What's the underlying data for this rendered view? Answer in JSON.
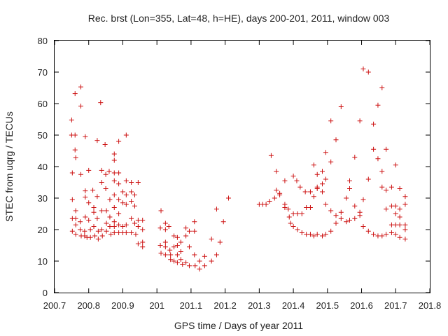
{
  "chart_data": {
    "type": "scatter",
    "title": "Rec. brst (Lon=355, Lat=48, h=HE), days 200-201, 2011, window 003",
    "xlabel": "GPS time / Days of year 2011",
    "ylabel": "STEC from uqrg / TECUs",
    "xlim": [
      200.7,
      201.8
    ],
    "ylim": [
      0,
      80
    ],
    "xticks": [
      "200.7",
      "200.8",
      "200.9",
      "201",
      "201.1",
      "201.2",
      "201.3",
      "201.4",
      "201.5",
      "201.6",
      "201.7",
      "201.8"
    ],
    "yticks": [
      "0",
      "10",
      "20",
      "30",
      "40",
      "50",
      "60",
      "70",
      "80"
    ],
    "grid": false,
    "marker": "plus",
    "color": "#cc1111",
    "points": [
      [
        200.75,
        54.8
      ],
      [
        200.75,
        50.0
      ],
      [
        200.752,
        38.0
      ],
      [
        200.752,
        29.5
      ],
      [
        200.752,
        23.5
      ],
      [
        200.752,
        19.5
      ],
      [
        200.76,
        63.2
      ],
      [
        200.76,
        50.0
      ],
      [
        200.76,
        45.3
      ],
      [
        200.762,
        42.8
      ],
      [
        200.762,
        26.0
      ],
      [
        200.762,
        23.5
      ],
      [
        200.762,
        21.5
      ],
      [
        200.762,
        18.5
      ],
      [
        200.777,
        65.3
      ],
      [
        200.777,
        59.2
      ],
      [
        200.777,
        37.5
      ],
      [
        200.775,
        22.5
      ],
      [
        200.775,
        20.0
      ],
      [
        200.778,
        18.0
      ],
      [
        200.79,
        49.5
      ],
      [
        200.79,
        32.3
      ],
      [
        200.79,
        30.3
      ],
      [
        200.79,
        24.0
      ],
      [
        200.788,
        19.5
      ],
      [
        200.788,
        18.0
      ],
      [
        200.795,
        17.5
      ],
      [
        200.8,
        38.8
      ],
      [
        200.8,
        28.5
      ],
      [
        200.8,
        23.0
      ],
      [
        200.805,
        20.0
      ],
      [
        200.805,
        17.5
      ],
      [
        200.812,
        32.5
      ],
      [
        200.815,
        27.0
      ],
      [
        200.815,
        25.5
      ],
      [
        200.815,
        21.0
      ],
      [
        200.818,
        18.0
      ],
      [
        200.825,
        48.3
      ],
      [
        200.825,
        30.5
      ],
      [
        200.825,
        23.5
      ],
      [
        200.828,
        19.5
      ],
      [
        200.828,
        17.0
      ],
      [
        200.835,
        60.3
      ],
      [
        200.838,
        38.8
      ],
      [
        200.838,
        35.0
      ],
      [
        200.838,
        26.0
      ],
      [
        200.838,
        20.0
      ],
      [
        200.84,
        18.0
      ],
      [
        200.848,
        47.0
      ],
      [
        200.85,
        37.5
      ],
      [
        200.85,
        33.0
      ],
      [
        200.852,
        26.0
      ],
      [
        200.852,
        22.0
      ],
      [
        200.852,
        19.5
      ],
      [
        200.86,
        38.5
      ],
      [
        200.862,
        29.5
      ],
      [
        200.862,
        24.0
      ],
      [
        200.862,
        21.0
      ],
      [
        200.865,
        18.5
      ],
      [
        200.875,
        44.0
      ],
      [
        200.875,
        42.0
      ],
      [
        200.875,
        38.0
      ],
      [
        200.875,
        35.5
      ],
      [
        200.875,
        31.0
      ],
      [
        200.875,
        27.0
      ],
      [
        200.875,
        22.5
      ],
      [
        200.875,
        21.0
      ],
      [
        200.875,
        19.0
      ],
      [
        200.888,
        48.0
      ],
      [
        200.888,
        38.0
      ],
      [
        200.888,
        34.5
      ],
      [
        200.888,
        29.5
      ],
      [
        200.888,
        25.0
      ],
      [
        200.888,
        21.5
      ],
      [
        200.888,
        19.0
      ],
      [
        200.9,
        32.0
      ],
      [
        200.9,
        28.5
      ],
      [
        200.9,
        21.0
      ],
      [
        200.9,
        19.0
      ],
      [
        200.91,
        50.0
      ],
      [
        200.91,
        35.5
      ],
      [
        200.91,
        31.0
      ],
      [
        200.91,
        28.0
      ],
      [
        200.91,
        21.5
      ],
      [
        200.91,
        19.0
      ],
      [
        200.925,
        35.0
      ],
      [
        200.925,
        32.0
      ],
      [
        200.925,
        29.0
      ],
      [
        200.925,
        23.5
      ],
      [
        200.925,
        19.0
      ],
      [
        200.935,
        31.0
      ],
      [
        200.935,
        27.5
      ],
      [
        200.935,
        22.0
      ],
      [
        200.938,
        18.5
      ],
      [
        200.945,
        35.0
      ],
      [
        200.945,
        23.0
      ],
      [
        200.945,
        21.0
      ],
      [
        200.945,
        15.5
      ],
      [
        200.958,
        23.0
      ],
      [
        200.958,
        20.0
      ],
      [
        200.958,
        16.0
      ],
      [
        200.958,
        14.5
      ],
      [
        201.012,
        26.0
      ],
      [
        201.01,
        20.5
      ],
      [
        201.01,
        15.0
      ],
      [
        201.012,
        12.5
      ],
      [
        201.025,
        22.0
      ],
      [
        201.025,
        20.0
      ],
      [
        201.025,
        16.0
      ],
      [
        201.025,
        14.5
      ],
      [
        201.025,
        12.0
      ],
      [
        201.035,
        21.0
      ],
      [
        201.038,
        13.5
      ],
      [
        201.04,
        12.0
      ],
      [
        201.04,
        10.5
      ],
      [
        201.05,
        18.0
      ],
      [
        201.05,
        14.5
      ],
      [
        201.05,
        10.0
      ],
      [
        201.06,
        17.5
      ],
      [
        201.06,
        15.0
      ],
      [
        201.06,
        12.0
      ],
      [
        201.06,
        9.5
      ],
      [
        201.07,
        16.0
      ],
      [
        201.07,
        13.0
      ],
      [
        201.07,
        10.5
      ],
      [
        201.075,
        9.0
      ],
      [
        201.085,
        20.5
      ],
      [
        201.085,
        18.0
      ],
      [
        201.085,
        9.5
      ],
      [
        201.095,
        19.5
      ],
      [
        201.095,
        14.5
      ],
      [
        201.095,
        8.5
      ],
      [
        201.11,
        22.5
      ],
      [
        201.11,
        19.5
      ],
      [
        201.11,
        12.0
      ],
      [
        201.112,
        8.5
      ],
      [
        201.125,
        10.0
      ],
      [
        201.125,
        7.5
      ],
      [
        201.14,
        11.5
      ],
      [
        201.14,
        8.5
      ],
      [
        201.16,
        17.0
      ],
      [
        201.16,
        10.0
      ],
      [
        201.175,
        26.5
      ],
      [
        201.175,
        12.0
      ],
      [
        201.185,
        16.0
      ],
      [
        201.195,
        22.5
      ],
      [
        201.21,
        30.0
      ],
      [
        201.3,
        28.0
      ],
      [
        201.31,
        28.0
      ],
      [
        201.32,
        28.0
      ],
      [
        201.33,
        29.0
      ],
      [
        201.335,
        43.5
      ],
      [
        201.345,
        30.0
      ],
      [
        201.35,
        38.5
      ],
      [
        201.35,
        32.5
      ],
      [
        201.36,
        31.5
      ],
      [
        201.36,
        31.0
      ],
      [
        201.375,
        35.5
      ],
      [
        201.375,
        28.0
      ],
      [
        201.375,
        27.0
      ],
      [
        201.385,
        26.5
      ],
      [
        201.388,
        24.0
      ],
      [
        201.392,
        22.0
      ],
      [
        201.4,
        37.0
      ],
      [
        201.4,
        25.0
      ],
      [
        201.4,
        21.0
      ],
      [
        201.41,
        35.5
      ],
      [
        201.412,
        25.0
      ],
      [
        201.412,
        20.0
      ],
      [
        201.42,
        33.5
      ],
      [
        201.425,
        25.0
      ],
      [
        201.425,
        19.0
      ],
      [
        201.435,
        32.0
      ],
      [
        201.438,
        27.0
      ],
      [
        201.438,
        18.5
      ],
      [
        201.45,
        32.0
      ],
      [
        201.45,
        27.0
      ],
      [
        201.45,
        18.5
      ],
      [
        201.46,
        40.5
      ],
      [
        201.46,
        30.5
      ],
      [
        201.46,
        18.0
      ],
      [
        201.47,
        37.5
      ],
      [
        201.47,
        33.5
      ],
      [
        201.47,
        33.0
      ],
      [
        201.47,
        18.5
      ],
      [
        201.485,
        38.5
      ],
      [
        201.485,
        34.5
      ],
      [
        201.485,
        32.0
      ],
      [
        201.485,
        18.0
      ],
      [
        201.495,
        44.5
      ],
      [
        201.495,
        36.0
      ],
      [
        201.495,
        28.0
      ],
      [
        201.495,
        18.5
      ],
      [
        201.51,
        54.5
      ],
      [
        201.51,
        41.5
      ],
      [
        201.51,
        26.0
      ],
      [
        201.51,
        19.5
      ],
      [
        201.525,
        48.5
      ],
      [
        201.525,
        24.5
      ],
      [
        201.525,
        22.0
      ],
      [
        201.54,
        59.0
      ],
      [
        201.54,
        25.5
      ],
      [
        201.54,
        23.5
      ],
      [
        201.555,
        30.0
      ],
      [
        201.555,
        22.5
      ],
      [
        201.565,
        35.5
      ],
      [
        201.565,
        33.0
      ],
      [
        201.565,
        23.0
      ],
      [
        201.58,
        43.0
      ],
      [
        201.58,
        27.5
      ],
      [
        201.58,
        23.5
      ],
      [
        201.595,
        54.5
      ],
      [
        201.595,
        25.5
      ],
      [
        201.595,
        24.5
      ],
      [
        201.605,
        71.0
      ],
      [
        201.605,
        29.5
      ],
      [
        201.605,
        21.0
      ],
      [
        201.62,
        70.0
      ],
      [
        201.62,
        36.0
      ],
      [
        201.62,
        19.5
      ],
      [
        201.635,
        53.5
      ],
      [
        201.635,
        45.5
      ],
      [
        201.635,
        18.5
      ],
      [
        201.648,
        59.5
      ],
      [
        201.648,
        42.5
      ],
      [
        201.648,
        18.0
      ],
      [
        201.66,
        65.0
      ],
      [
        201.66,
        38.5
      ],
      [
        201.66,
        33.5
      ],
      [
        201.66,
        18.0
      ],
      [
        201.672,
        45.5
      ],
      [
        201.672,
        32.5
      ],
      [
        201.672,
        26.5
      ],
      [
        201.672,
        18.5
      ],
      [
        201.688,
        33.5
      ],
      [
        201.688,
        27.5
      ],
      [
        201.688,
        21.5
      ],
      [
        201.688,
        19.0
      ],
      [
        201.7,
        40.5
      ],
      [
        201.7,
        27.5
      ],
      [
        201.7,
        25.0
      ],
      [
        201.7,
        21.5
      ],
      [
        201.7,
        18.5
      ],
      [
        201.712,
        33.0
      ],
      [
        201.712,
        26.5
      ],
      [
        201.712,
        24.0
      ],
      [
        201.712,
        21.5
      ],
      [
        201.712,
        17.5
      ],
      [
        201.728,
        30.5
      ],
      [
        201.728,
        28.0
      ],
      [
        201.728,
        21.5
      ],
      [
        201.728,
        20.0
      ],
      [
        201.728,
        17.0
      ]
    ]
  }
}
